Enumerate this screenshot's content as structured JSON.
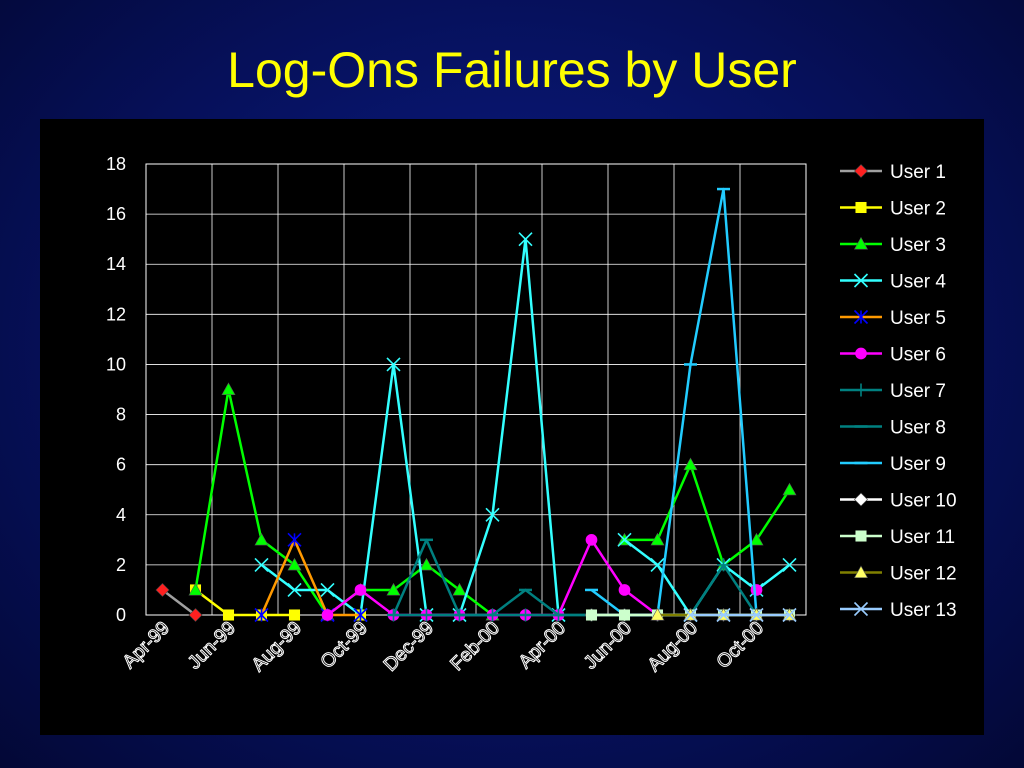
{
  "slide": {
    "title": "Log-Ons Failures by User"
  },
  "chart_data": {
    "type": "line",
    "title": "Log-Ons Failures by User",
    "xlabel": "",
    "ylabel": "",
    "ylim": [
      0,
      18
    ],
    "yticks": [
      0,
      2,
      4,
      6,
      8,
      10,
      12,
      14,
      16,
      18
    ],
    "grid": true,
    "legend": "right",
    "x": [
      "Apr-99",
      "May-99",
      "Jun-99",
      "Jul-99",
      "Aug-99",
      "Sep-99",
      "Oct-99",
      "Nov-99",
      "Dec-99",
      "Jan-00",
      "Feb-00",
      "Mar-00",
      "Apr-00",
      "May-00",
      "Jun-00",
      "Jul-00",
      "Aug-00",
      "Sep-00",
      "Oct-00",
      "Nov-00"
    ],
    "x_tick_labels": [
      "Apr-99",
      "Jun-99",
      "Aug-99",
      "Oct-99",
      "Dec-99",
      "Feb-00",
      "Apr-00",
      "Jun-00",
      "Aug-00",
      "Oct-00"
    ],
    "series": [
      {
        "name": "User 1",
        "color": "#ff2020",
        "line_color": "#a0a0a0",
        "marker": "diamond",
        "values": [
          1,
          0,
          null,
          null,
          null,
          null,
          null,
          null,
          null,
          null,
          null,
          null,
          null,
          null,
          null,
          null,
          null,
          null,
          null,
          null
        ]
      },
      {
        "name": "User 2",
        "color": "#ffff00",
        "line_color": "#ffff00",
        "marker": "square",
        "values": [
          null,
          1,
          0,
          0,
          0,
          null,
          0,
          null,
          null,
          null,
          null,
          null,
          null,
          null,
          null,
          null,
          null,
          null,
          null,
          null
        ]
      },
      {
        "name": "User 3",
        "color": "#00ff00",
        "line_color": "#00ff00",
        "marker": "triangle",
        "values": [
          null,
          1,
          9,
          3,
          2,
          0,
          1,
          1,
          2,
          1,
          0,
          null,
          null,
          null,
          3,
          3,
          6,
          2,
          3,
          5
        ]
      },
      {
        "name": "User 4",
        "color": "#33ffff",
        "line_color": "#33ffff",
        "marker": "x",
        "values": [
          null,
          null,
          null,
          2,
          1,
          1,
          0,
          10,
          0,
          0,
          4,
          15,
          0,
          null,
          3,
          2,
          0,
          2,
          1,
          2
        ]
      },
      {
        "name": "User 5",
        "color": "#0000ff",
        "line_color": "#ff9900",
        "marker": "star",
        "values": [
          null,
          null,
          null,
          0,
          3,
          0,
          0,
          null,
          null,
          null,
          null,
          null,
          null,
          null,
          null,
          null,
          null,
          null,
          null,
          null
        ]
      },
      {
        "name": "User 6",
        "color": "#ff00ff",
        "line_color": "#ff00ff",
        "marker": "circle",
        "values": [
          null,
          null,
          null,
          null,
          null,
          0,
          1,
          0,
          0,
          0,
          0,
          0,
          0,
          3,
          1,
          0,
          null,
          null,
          1,
          null
        ]
      },
      {
        "name": "User 7",
        "color": "#008080",
        "line_color": "#008080",
        "marker": "plus",
        "values": [
          null,
          null,
          null,
          null,
          null,
          null,
          null,
          0,
          0,
          0,
          0,
          0,
          0,
          0,
          0,
          0,
          0,
          2,
          0,
          null
        ]
      },
      {
        "name": "User 8",
        "color": "#008080",
        "line_color": "#008080",
        "marker": "dash",
        "values": [
          null,
          null,
          null,
          null,
          null,
          null,
          null,
          0,
          3,
          0,
          0,
          1,
          0,
          0,
          0,
          0,
          0,
          0,
          0,
          null
        ]
      },
      {
        "name": "User 9",
        "color": "#22ccff",
        "line_color": "#22ccff",
        "marker": "dash",
        "values": [
          null,
          null,
          null,
          null,
          null,
          null,
          null,
          null,
          null,
          null,
          null,
          null,
          null,
          1,
          0,
          0,
          10,
          17,
          0,
          null
        ]
      },
      {
        "name": "User 10",
        "color": "#ffffff",
        "line_color": "#ffffff",
        "marker": "diamond",
        "values": [
          null,
          null,
          null,
          null,
          null,
          null,
          null,
          null,
          null,
          null,
          null,
          null,
          null,
          0,
          0,
          0,
          0,
          0,
          0,
          0
        ]
      },
      {
        "name": "User 11",
        "color": "#ccffcc",
        "line_color": "#ccffcc",
        "marker": "square",
        "values": [
          null,
          null,
          null,
          null,
          null,
          null,
          null,
          null,
          null,
          null,
          null,
          null,
          null,
          0,
          0,
          0,
          0,
          0,
          0,
          0
        ]
      },
      {
        "name": "User 12",
        "color": "#ffff66",
        "line_color": "#808000",
        "marker": "triangle",
        "values": [
          null,
          null,
          null,
          null,
          null,
          null,
          null,
          null,
          null,
          null,
          null,
          null,
          null,
          null,
          null,
          0,
          0,
          0,
          0,
          0
        ]
      },
      {
        "name": "User 13",
        "color": "#99ccff",
        "line_color": "#99ccff",
        "marker": "x",
        "values": [
          null,
          null,
          null,
          null,
          null,
          null,
          null,
          null,
          null,
          null,
          null,
          null,
          null,
          null,
          null,
          null,
          0,
          0,
          0,
          0
        ]
      }
    ]
  }
}
